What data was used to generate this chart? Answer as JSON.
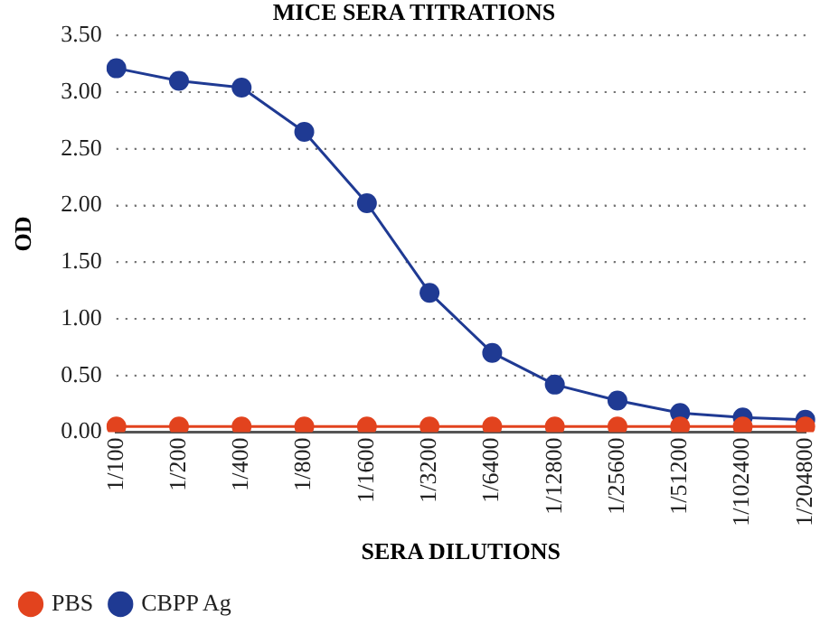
{
  "chart_data": {
    "type": "line",
    "title": "MICE SERA TITRATIONS",
    "xlabel": "SERA DILUTIONS",
    "ylabel": "OD",
    "categories": [
      "1/100",
      "1/200",
      "1/400",
      "1/800",
      "1/1600",
      "1/3200",
      "1/6400",
      "1/12800",
      "1/25600",
      "1/51200",
      "1/102400",
      "1/204800"
    ],
    "series": [
      {
        "name": "CBPP Ag",
        "color": "#1f3a93",
        "values": [
          3.21,
          3.1,
          3.04,
          2.65,
          2.02,
          1.23,
          0.7,
          0.42,
          0.28,
          0.17,
          0.13,
          0.11
        ]
      },
      {
        "name": "PBS",
        "color": "#e2431e",
        "values": [
          0.05,
          0.05,
          0.05,
          0.05,
          0.05,
          0.05,
          0.05,
          0.05,
          0.05,
          0.05,
          0.05,
          0.05
        ]
      }
    ],
    "ylim": [
      0,
      3.5
    ],
    "yticks": [
      {
        "value": 0,
        "label": "0.00"
      },
      {
        "value": 0.5,
        "label": "0.50"
      },
      {
        "value": 1,
        "label": "1.00"
      },
      {
        "value": 1.5,
        "label": "1.50"
      },
      {
        "value": 2,
        "label": "2.00"
      },
      {
        "value": 2.5,
        "label": "2.50"
      },
      {
        "value": 3,
        "label": "3.00"
      },
      {
        "value": 3.5,
        "label": "3.50"
      }
    ],
    "grid": "y",
    "legend": "bottom left",
    "marker": "circle",
    "line_style": "solid"
  }
}
